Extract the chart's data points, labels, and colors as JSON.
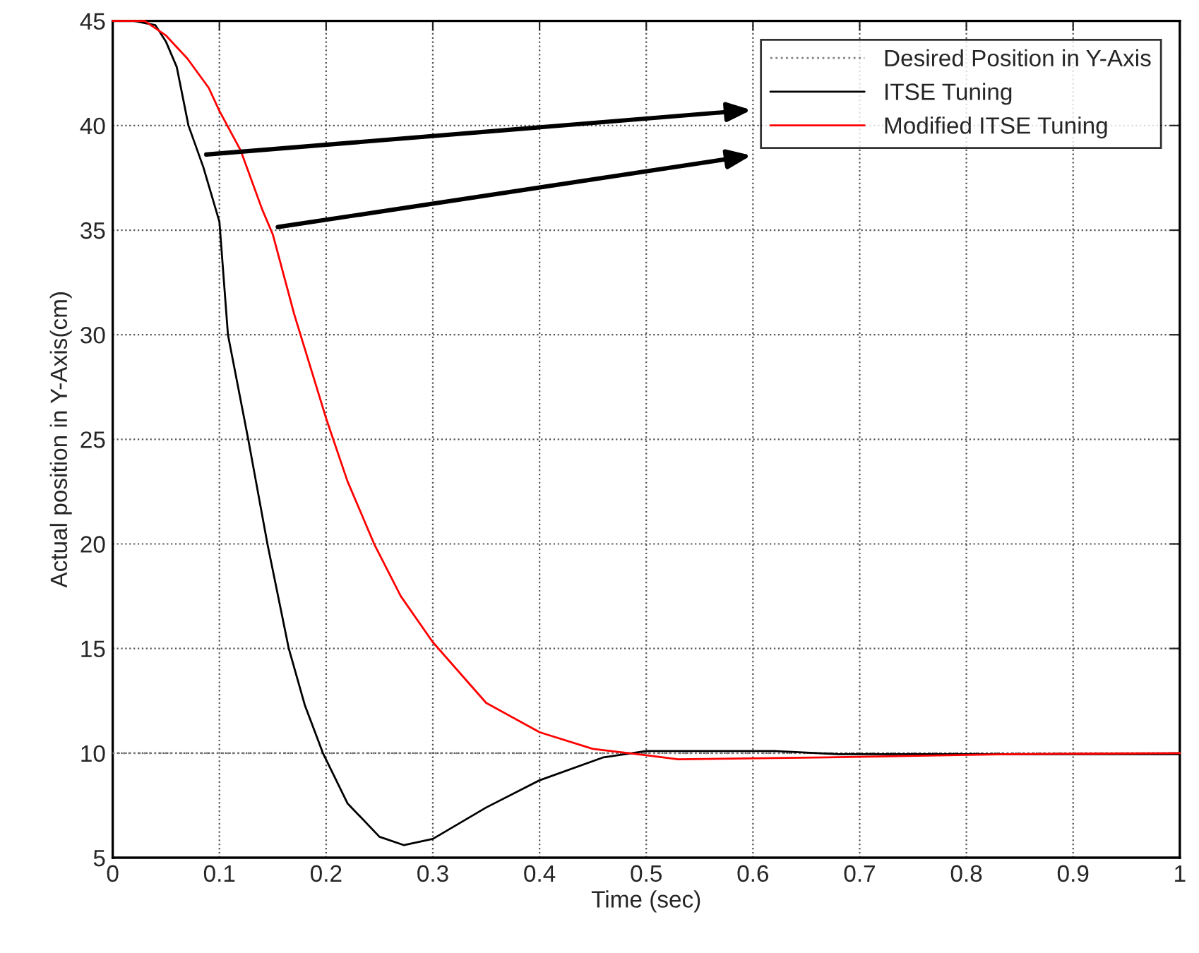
{
  "chart_data": {
    "type": "line",
    "xlabel": "Time (sec)",
    "ylabel": "Actual position in Y-Axis(cm)",
    "xlim": [
      0,
      1
    ],
    "xticks": [
      0,
      0.1,
      0.2,
      0.3,
      0.4,
      0.5,
      0.6,
      0.7,
      0.8,
      0.9,
      1
    ],
    "ylim": [
      5,
      45
    ],
    "yticks": [
      5,
      10,
      15,
      20,
      25,
      30,
      35,
      40,
      45
    ],
    "grid": true,
    "legend": "top right",
    "series": [
      {
        "name": "Desired Position in Y-Axis",
        "color": "#808080",
        "line_style": "dotted",
        "x": [
          0,
          1
        ],
        "values": [
          10,
          10
        ]
      },
      {
        "name": "ITSE Tuning",
        "color": "#000000",
        "line_style": "solid",
        "x": [
          0,
          0.02,
          0.04,
          0.05,
          0.06,
          0.071,
          0.085,
          0.1,
          0.108,
          0.127,
          0.145,
          0.165,
          0.18,
          0.197,
          0.22,
          0.25,
          0.273,
          0.3,
          0.35,
          0.4,
          0.46,
          0.5,
          0.62,
          0.68,
          1
        ],
        "values": [
          45,
          45,
          44.8,
          44,
          42.8,
          40,
          38,
          35.4,
          30,
          25,
          20,
          15,
          12.3,
          10,
          7.6,
          6,
          5.6,
          5.9,
          7.4,
          8.7,
          9.8,
          10.1,
          10.1,
          9.95,
          9.95
        ]
      },
      {
        "name": "Modified ITSE Tuning",
        "color": "#ff0000",
        "line_style": "solid",
        "x": [
          0,
          0.03,
          0.05,
          0.07,
          0.09,
          0.1,
          0.12,
          0.14,
          0.15,
          0.17,
          0.2,
          0.22,
          0.245,
          0.27,
          0.3,
          0.35,
          0.4,
          0.45,
          0.5,
          0.53,
          0.67,
          0.84,
          1
        ],
        "values": [
          45,
          45,
          44.3,
          43.2,
          41.8,
          40.7,
          38.8,
          36,
          34.8,
          31,
          26,
          23,
          20,
          17.5,
          15.3,
          12.4,
          11,
          10.2,
          9.9,
          9.7,
          9.8,
          9.95,
          10
        ]
      }
    ]
  }
}
